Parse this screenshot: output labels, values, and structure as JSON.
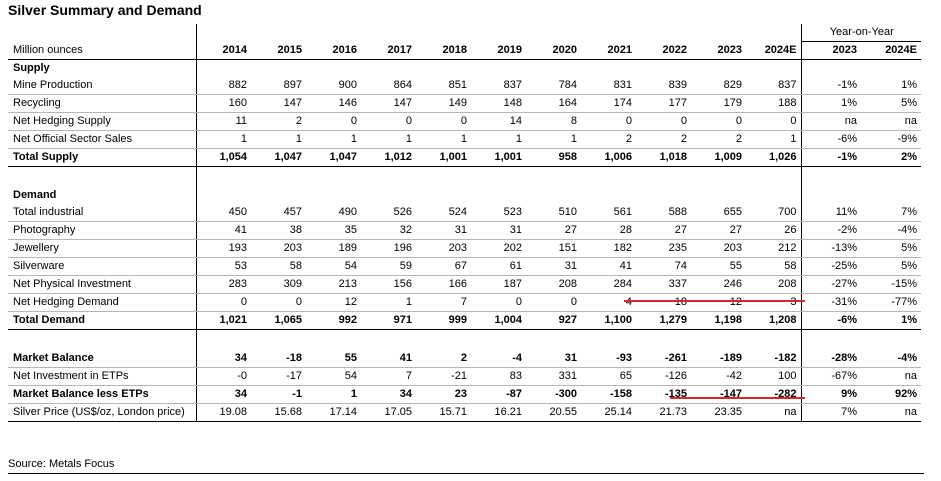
{
  "title": "Silver Summary and Demand",
  "unit_label": "Million ounces",
  "yoy_header": "Year-on-Year",
  "years": [
    "2014",
    "2015",
    "2016",
    "2017",
    "2018",
    "2019",
    "2020",
    "2021",
    "2022",
    "2023",
    "2024E"
  ],
  "yoy_years": [
    "2023",
    "2024E"
  ],
  "supply_header": "Supply",
  "demand_header": "Demand",
  "supply_rows": [
    {
      "label": "Mine Production",
      "values": [
        "882",
        "897",
        "900",
        "864",
        "851",
        "837",
        "784",
        "831",
        "839",
        "829",
        "837"
      ],
      "yoy": [
        "-1%",
        "1%"
      ]
    },
    {
      "label": "Recycling",
      "values": [
        "160",
        "147",
        "146",
        "147",
        "149",
        "148",
        "164",
        "174",
        "177",
        "179",
        "188"
      ],
      "yoy": [
        "1%",
        "5%"
      ]
    },
    {
      "label": "Net Hedging Supply",
      "values": [
        "11",
        "2",
        "0",
        "0",
        "0",
        "14",
        "8",
        "0",
        "0",
        "0",
        "0"
      ],
      "yoy": [
        "na",
        "na"
      ]
    },
    {
      "label": "Net Official Sector Sales",
      "values": [
        "1",
        "1",
        "1",
        "1",
        "1",
        "1",
        "1",
        "2",
        "2",
        "2",
        "1"
      ],
      "yoy": [
        "-6%",
        "-9%"
      ]
    }
  ],
  "total_supply": {
    "label": "Total Supply",
    "values": [
      "1,054",
      "1,047",
      "1,047",
      "1,012",
      "1,001",
      "1,001",
      "958",
      "1,006",
      "1,018",
      "1,009",
      "1,026"
    ],
    "yoy": [
      "-1%",
      "2%"
    ]
  },
  "demand_rows": [
    {
      "label": "Total industrial",
      "values": [
        "450",
        "457",
        "490",
        "526",
        "524",
        "523",
        "510",
        "561",
        "588",
        "655",
        "700"
      ],
      "yoy": [
        "11%",
        "7%"
      ]
    },
    {
      "label": "Photography",
      "values": [
        "41",
        "38",
        "35",
        "32",
        "31",
        "31",
        "27",
        "28",
        "27",
        "27",
        "26"
      ],
      "yoy": [
        "-2%",
        "-4%"
      ]
    },
    {
      "label": "Jewellery",
      "values": [
        "193",
        "203",
        "189",
        "196",
        "203",
        "202",
        "151",
        "182",
        "235",
        "203",
        "212"
      ],
      "yoy": [
        "-13%",
        "5%"
      ]
    },
    {
      "label": "Silverware",
      "values": [
        "53",
        "58",
        "54",
        "59",
        "67",
        "61",
        "31",
        "41",
        "74",
        "55",
        "58"
      ],
      "yoy": [
        "-25%",
        "5%"
      ]
    },
    {
      "label": "Net Physical Investment",
      "values": [
        "283",
        "309",
        "213",
        "156",
        "166",
        "187",
        "208",
        "284",
        "337",
        "246",
        "208"
      ],
      "yoy": [
        "-27%",
        "-15%"
      ]
    },
    {
      "label": "Net Hedging Demand",
      "values": [
        "0",
        "0",
        "12",
        "1",
        "7",
        "0",
        "0",
        "4",
        "18",
        "12",
        "3"
      ],
      "yoy": [
        "-31%",
        "-77%"
      ]
    }
  ],
  "total_demand": {
    "label": "Total Demand",
    "values": [
      "1,021",
      "1,065",
      "992",
      "971",
      "999",
      "1,004",
      "927",
      "1,100",
      "1,279",
      "1,198",
      "1,208"
    ],
    "yoy": [
      "-6%",
      "1%"
    ]
  },
  "market_balance": {
    "label": "Market Balance",
    "values": [
      "34",
      "-18",
      "55",
      "41",
      "2",
      "-4",
      "31",
      "-93",
      "-261",
      "-189",
      "-182"
    ],
    "yoy": [
      "-28%",
      "-4%"
    ]
  },
  "net_investment_etps": {
    "label": "Net Investment in ETPs",
    "values": [
      "-0",
      "-17",
      "54",
      "7",
      "-21",
      "83",
      "331",
      "65",
      "-126",
      "-42",
      "100"
    ],
    "yoy": [
      "-67%",
      "na"
    ]
  },
  "market_balance_less_etps": {
    "label": "Market Balance less ETPs",
    "values": [
      "34",
      "-1",
      "1",
      "34",
      "23",
      "-87",
      "-300",
      "-158",
      "-135",
      "-147",
      "-282"
    ],
    "yoy": [
      "9%",
      "92%"
    ]
  },
  "silver_price": {
    "label": "Silver Price (US$/oz, London price)",
    "values": [
      "19.08",
      "15.68",
      "17.14",
      "17.05",
      "15.71",
      "16.21",
      "20.55",
      "25.14",
      "21.73",
      "23.35",
      "na"
    ],
    "yoy": [
      "7%",
      "na"
    ]
  },
  "source": "Source: Metals Focus"
}
